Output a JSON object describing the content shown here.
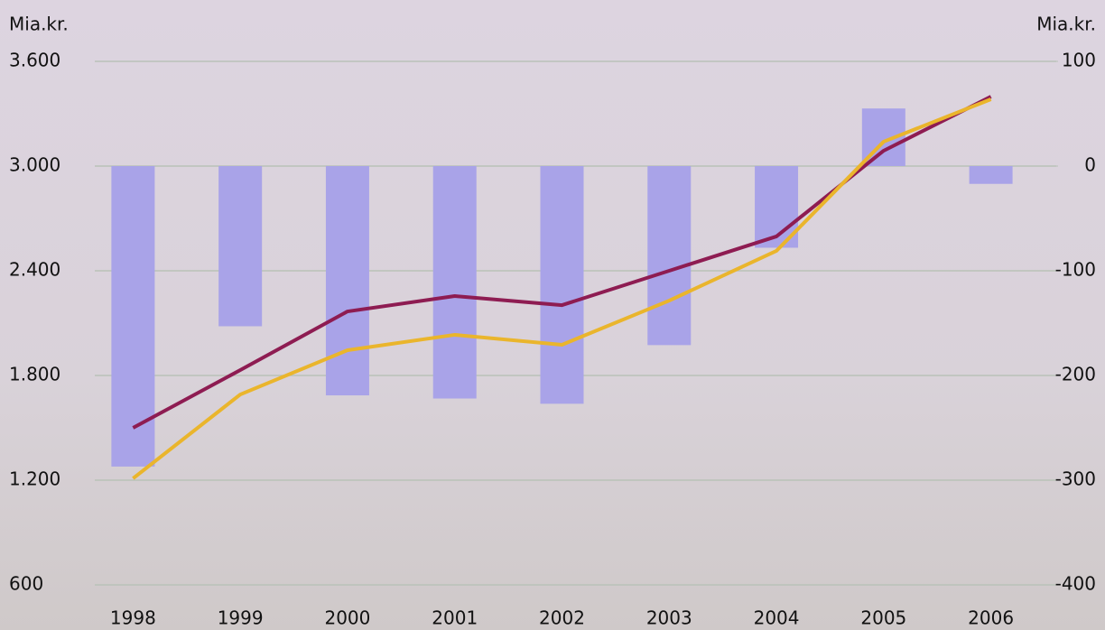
{
  "chart_data": {
    "type": "combo",
    "y_label": "Mia.kr.",
    "y2_label": "Mia.kr.",
    "categories": [
      "1998",
      "1999",
      "2000",
      "2001",
      "2002",
      "2003",
      "2004",
      "2005",
      "2006"
    ],
    "ylim": [
      600,
      3600
    ],
    "yticks": [
      {
        "value": 600,
        "label": "600"
      },
      {
        "value": 1200,
        "label": "1.200"
      },
      {
        "value": 1800,
        "label": "1.800"
      },
      {
        "value": 2400,
        "label": "2.400"
      },
      {
        "value": 3000,
        "label": "3.000"
      },
      {
        "value": 3600,
        "label": "3.600"
      }
    ],
    "y2lim": [
      -400,
      100
    ],
    "y2ticks": [
      -400,
      -300,
      -200,
      -100,
      0,
      100
    ],
    "grid": true,
    "series": [
      {
        "type": "bar",
        "axis": "y2",
        "color": "#a9a3e8",
        "values": [
          -287,
          -153,
          -219,
          -222,
          -227,
          -171,
          -78,
          55,
          -17
        ]
      },
      {
        "type": "line",
        "color": "#8e1c52",
        "values": [
          1500,
          1831,
          2167,
          2255,
          2203,
          2400,
          2597,
          3088,
          3398
        ]
      },
      {
        "type": "line",
        "color": "#eab52c",
        "values": [
          1210,
          1691,
          1945,
          2033,
          1976,
          2229,
          2514,
          3140,
          3383
        ]
      }
    ]
  }
}
